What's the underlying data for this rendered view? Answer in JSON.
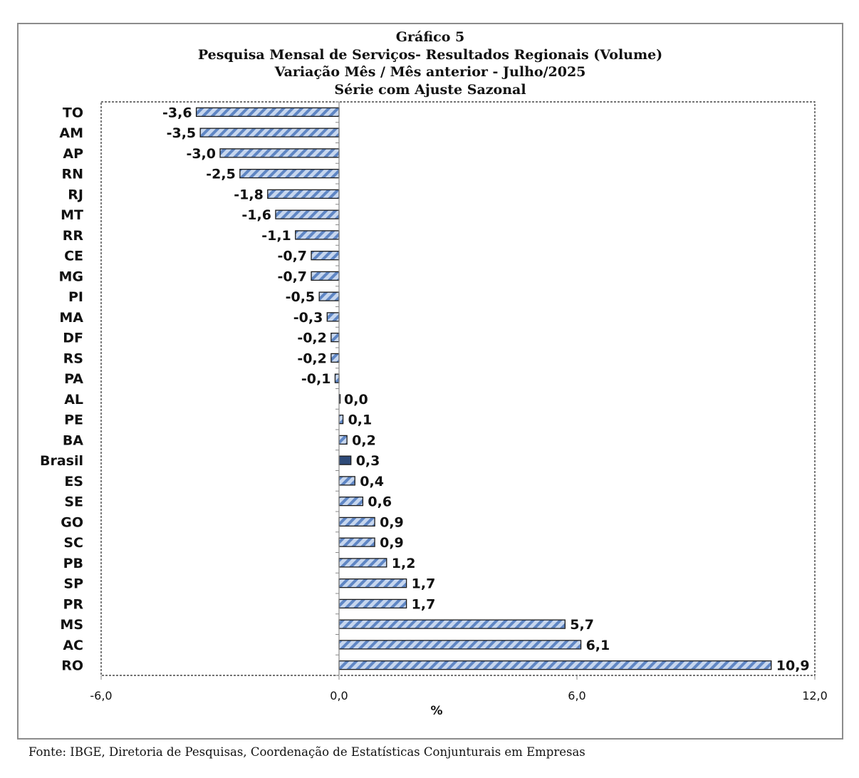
{
  "title_lines": [
    "Gráfico 5",
    "Pesquisa Mensal de Serviços- Resultados Regionais (Volume)",
    "Variação Mês / Mês anterior - Julho/2025",
    "Série com Ajuste Sazonal"
  ],
  "footer": "Fonte: IBGE, Diretoria de Pesquisas, Coordenação de Estatísticas Conjunturais em Empresas",
  "chart_data": {
    "type": "bar",
    "orientation": "horizontal",
    "categories": [
      "TO",
      "AM",
      "AP",
      "RN",
      "RJ",
      "MT",
      "RR",
      "CE",
      "MG",
      "PI",
      "MA",
      "DF",
      "RS",
      "PA",
      "AL",
      "PE",
      "BA",
      "Brasil",
      "ES",
      "SE",
      "GO",
      "SC",
      "PB",
      "SP",
      "PR",
      "MS",
      "AC",
      "RO"
    ],
    "values": [
      -3.6,
      -3.5,
      -3.0,
      -2.5,
      -1.8,
      -1.6,
      -1.1,
      -0.7,
      -0.7,
      -0.5,
      -0.3,
      -0.2,
      -0.2,
      -0.1,
      0.0,
      0.1,
      0.2,
      0.3,
      0.4,
      0.6,
      0.9,
      0.9,
      1.2,
      1.7,
      1.7,
      5.7,
      6.1,
      10.9
    ],
    "data_labels": [
      "-3,6",
      "-3,5",
      "-3,0",
      "-2,5",
      "-1,8",
      "-1,6",
      "-1,1",
      "-0,7",
      "-0,7",
      "-0,5",
      "-0,3",
      "-0,2",
      "-0,2",
      "-0,1",
      "0,0",
      "0,1",
      "0,2",
      "0,3",
      "0,4",
      "0,6",
      "0,9",
      "0,9",
      "1,2",
      "1,7",
      "1,7",
      "5,7",
      "6,1",
      "10,9"
    ],
    "highlight_category": "Brasil",
    "xlim": [
      -6,
      12
    ],
    "xticks": [
      -6,
      0,
      6,
      12
    ],
    "xtick_labels": [
      "-6,0",
      "0,0",
      "6,0",
      "12,0"
    ],
    "xlabel": "%",
    "ylabel": "",
    "grid": false,
    "legend": "none",
    "colors": {
      "bar_fill": "#c6d6ee",
      "bar_stripe": "#5f86c4",
      "highlight_fill": "#2e4a78",
      "bar_border": "#1a1a1a"
    }
  }
}
